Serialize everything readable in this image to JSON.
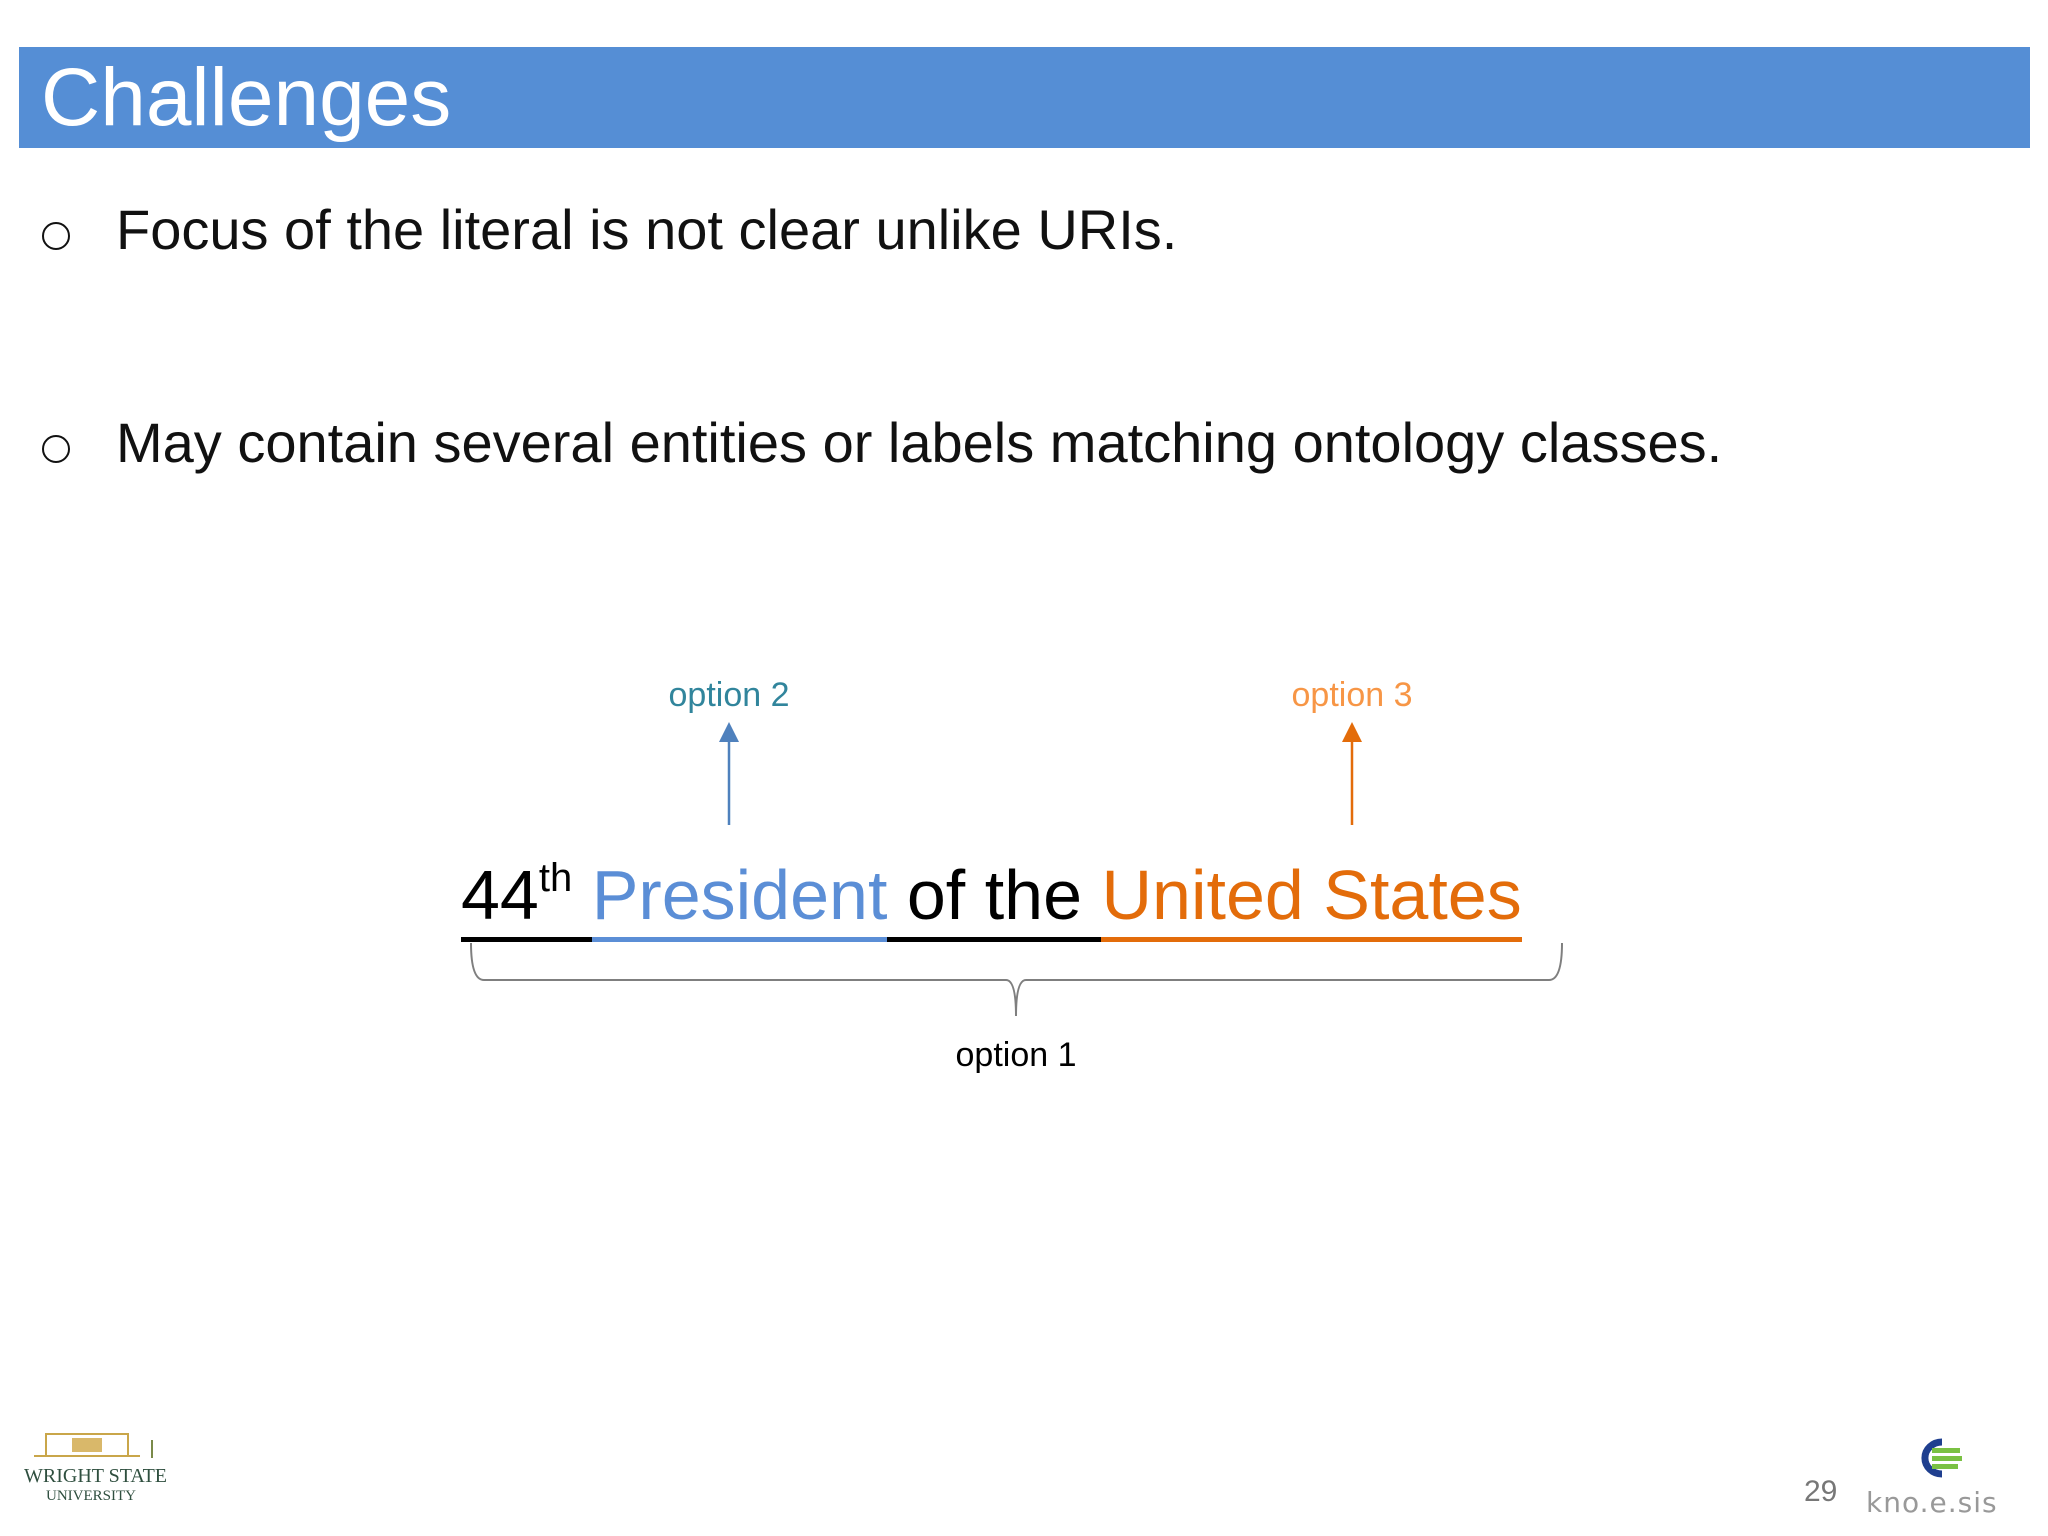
{
  "slide": {
    "title": "Challenges",
    "bullets": [
      "Focus of the literal is not clear unlike URIs.",
      "May contain several entities or labels matching ontology classes."
    ],
    "bullet_icon": "hollow-circle",
    "page_number": "29"
  },
  "diagram": {
    "phrase": {
      "ordinal": "44",
      "ordinal_suffix": "th",
      "president": "President",
      "of_the": "of the",
      "united_states": "United States"
    },
    "option_1": "option 1",
    "option_2": "option 2",
    "option_3": "option 3",
    "colors": {
      "blue": "#5B8ED6",
      "orange": "#E36C0A",
      "teal": "#31859C",
      "light_orange": "#F79646",
      "header": "#558ED5"
    }
  },
  "logos": {
    "left": "WRIGHT STATE UNIVERSITY",
    "right": "kno.e.sis"
  }
}
